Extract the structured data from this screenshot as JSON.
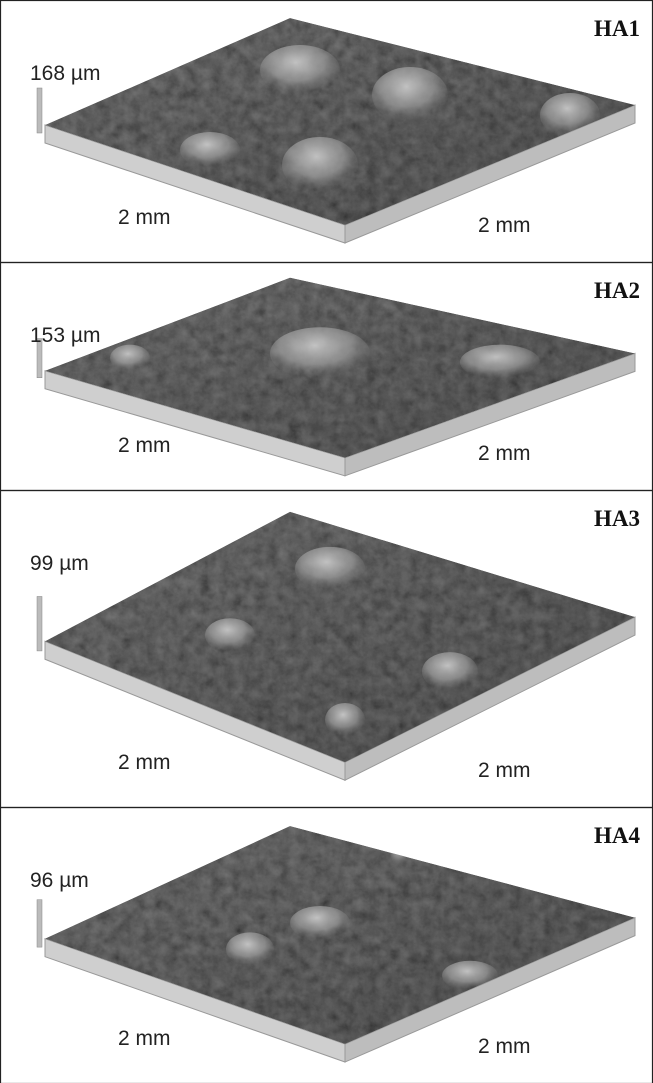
{
  "panels": [
    {
      "label": "HA1",
      "height": "168 µm",
      "x_label": "2 mm",
      "y_label": "2 mm"
    },
    {
      "label": "HA2",
      "height": "153 µm",
      "x_label": "2 mm",
      "y_label": "2 mm"
    },
    {
      "label": "HA3",
      "height": "99 µm",
      "x_label": "2 mm",
      "y_label": "2 mm"
    },
    {
      "label": "HA4",
      "height": "96 µm",
      "x_label": "2 mm",
      "y_label": "2 mm"
    }
  ]
}
